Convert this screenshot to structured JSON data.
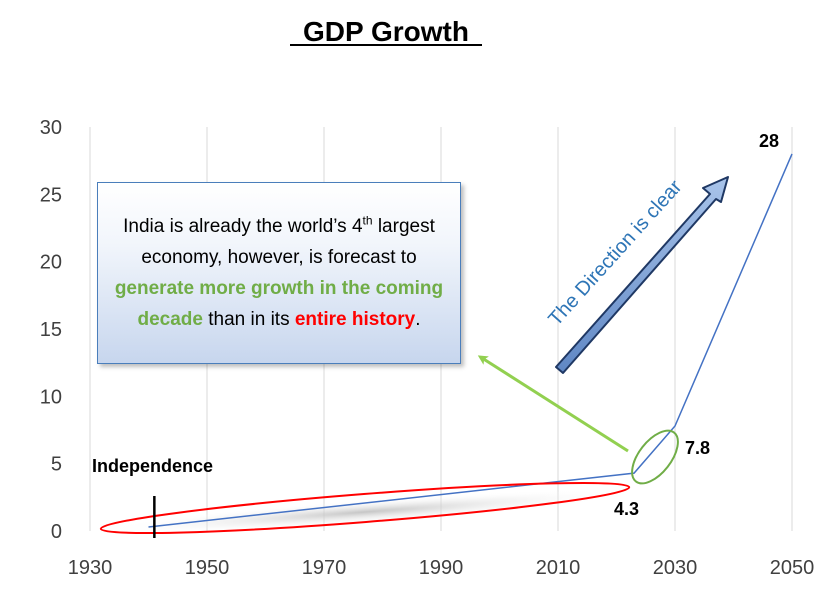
{
  "chart_data": {
    "type": "line",
    "title": "GDP Growth",
    "xlabel": "",
    "ylabel": "",
    "xlim": [
      1930,
      2050
    ],
    "ylim": [
      0,
      30
    ],
    "x_ticks": [
      1930,
      1950,
      1970,
      1990,
      2010,
      2030,
      2050
    ],
    "y_ticks": [
      0,
      5,
      10,
      15,
      20,
      25,
      30
    ],
    "grid": "vertical",
    "series": [
      {
        "name": "GDP",
        "color": "#4472c4",
        "x": [
          1940,
          2023,
          2030,
          2050
        ],
        "y": [
          0.3,
          4.3,
          7.8,
          28
        ]
      }
    ],
    "data_labels": [
      {
        "x": 2023,
        "y": 4.3,
        "text": "4.3"
      },
      {
        "x": 2030,
        "y": 7.8,
        "text": "7.8"
      },
      {
        "x": 2050,
        "y": 28,
        "text": "28"
      }
    ],
    "annotations": {
      "independence": {
        "x": 1941,
        "text": "Independence"
      },
      "direction": "The Direction is clear",
      "callout": {
        "text_1": "India is already the world’s 4",
        "sup": "th",
        "text_2": " largest economy, however, is forecast to ",
        "highlight_green": "generate more growth in the coming decade",
        "text_3": " than in its ",
        "highlight_red": "entire history",
        "text_4": "."
      }
    },
    "colors": {
      "axis_text": "#404040",
      "grid": "#d9d9d9",
      "line": "#4472c4",
      "ellipse_red": "#ff0000",
      "ellipse_green": "#70ad47",
      "arrow": "#7fa3d6"
    }
  }
}
